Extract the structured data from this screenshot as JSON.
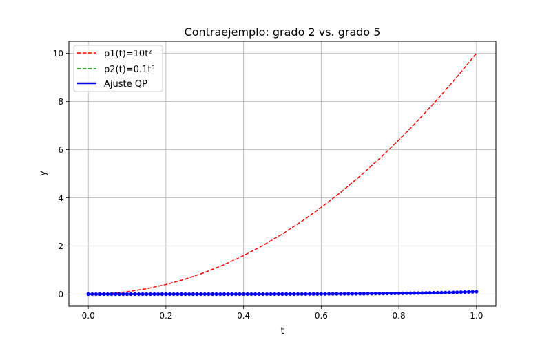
{
  "chart_data": {
    "type": "line",
    "title": "Contraejemplo: grado 2 vs. grado 5",
    "xlabel": "t",
    "ylabel": "y",
    "xlim": [
      -0.05,
      1.05
    ],
    "ylim": [
      -0.5,
      10.5
    ],
    "xticks": [
      "0.0",
      "0.2",
      "0.4",
      "0.6",
      "0.8",
      "1.0"
    ],
    "xtick_values": [
      0,
      0.2,
      0.4,
      0.6,
      0.8,
      1.0
    ],
    "yticks": [
      "0",
      "2",
      "4",
      "6",
      "8",
      "10"
    ],
    "ytick_values": [
      0,
      2,
      4,
      6,
      8,
      10
    ],
    "grid": true,
    "legend_position": "top-left",
    "t": [
      0,
      0.05,
      0.1,
      0.15,
      0.2,
      0.25,
      0.3,
      0.35,
      0.4,
      0.45,
      0.5,
      0.55,
      0.6,
      0.65,
      0.7,
      0.75,
      0.8,
      0.85,
      0.9,
      0.95,
      1.0
    ],
    "series": [
      {
        "name": "p1(t)=10t²",
        "color": "#ff0000",
        "style": "dashed",
        "values": [
          0,
          0.025,
          0.1,
          0.225,
          0.4,
          0.625,
          0.9,
          1.225,
          1.6,
          2.025,
          2.5,
          3.025,
          3.6,
          4.225,
          4.9,
          5.625,
          6.4,
          7.225,
          8.1,
          9.025,
          10
        ]
      },
      {
        "name": "p2(t)=0.1t⁵",
        "color": "#008000",
        "style": "dashed",
        "values": [
          0,
          0,
          0,
          0,
          0,
          0,
          0.0002,
          0.0005,
          0.001,
          0.0018,
          0.0031,
          0.005,
          0.0078,
          0.0116,
          0.0168,
          0.0237,
          0.0328,
          0.0444,
          0.059,
          0.0774,
          0.1
        ]
      },
      {
        "name": "Ajuste QP",
        "color": "#0000ff",
        "style": "solid-markers",
        "values": [
          0,
          0,
          0,
          0,
          0,
          0,
          0.0002,
          0.0005,
          0.001,
          0.0018,
          0.0031,
          0.005,
          0.0078,
          0.0116,
          0.0168,
          0.0237,
          0.0328,
          0.0444,
          0.059,
          0.0774,
          0.1
        ]
      }
    ]
  }
}
